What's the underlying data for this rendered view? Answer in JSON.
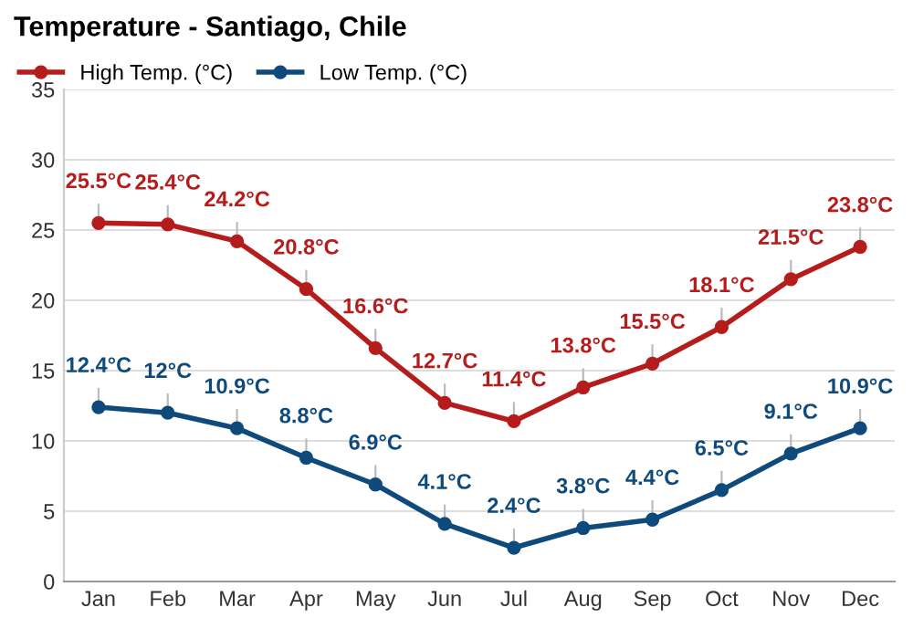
{
  "chart_data": {
    "type": "line",
    "title": "Temperature - Santiago, Chile",
    "categories": [
      "Jan",
      "Feb",
      "Mar",
      "Apr",
      "May",
      "Jun",
      "Jul",
      "Aug",
      "Sep",
      "Oct",
      "Nov",
      "Dec"
    ],
    "series": [
      {
        "name": "High Temp. (°C)",
        "color": "#b51c1c",
        "values": [
          25.5,
          25.4,
          24.2,
          20.8,
          16.6,
          12.7,
          11.4,
          13.8,
          15.5,
          18.1,
          21.5,
          23.8
        ],
        "value_labels": [
          "25.5°C",
          "25.4°C",
          "24.2°C",
          "20.8°C",
          "16.6°C",
          "12.7°C",
          "11.4°C",
          "13.8°C",
          "15.5°C",
          "18.1°C",
          "21.5°C",
          "23.8°C"
        ]
      },
      {
        "name": "Low Temp. (°C)",
        "color": "#0e4a7c",
        "values": [
          12.4,
          12,
          10.9,
          8.8,
          6.9,
          4.1,
          2.4,
          3.8,
          4.4,
          6.5,
          9.1,
          10.9
        ],
        "value_labels": [
          "12.4°C",
          "12°C",
          "10.9°C",
          "8.8°C",
          "6.9°C",
          "4.1°C",
          "2.4°C",
          "3.8°C",
          "4.4°C",
          "6.5°C",
          "9.1°C",
          "10.9°C"
        ]
      }
    ],
    "ylim": [
      0,
      35
    ],
    "yticks": [
      0,
      5,
      10,
      15,
      20,
      25,
      30,
      35
    ],
    "grid": "y",
    "legend": "top left",
    "marker": "circle",
    "line_style": "solid"
  }
}
